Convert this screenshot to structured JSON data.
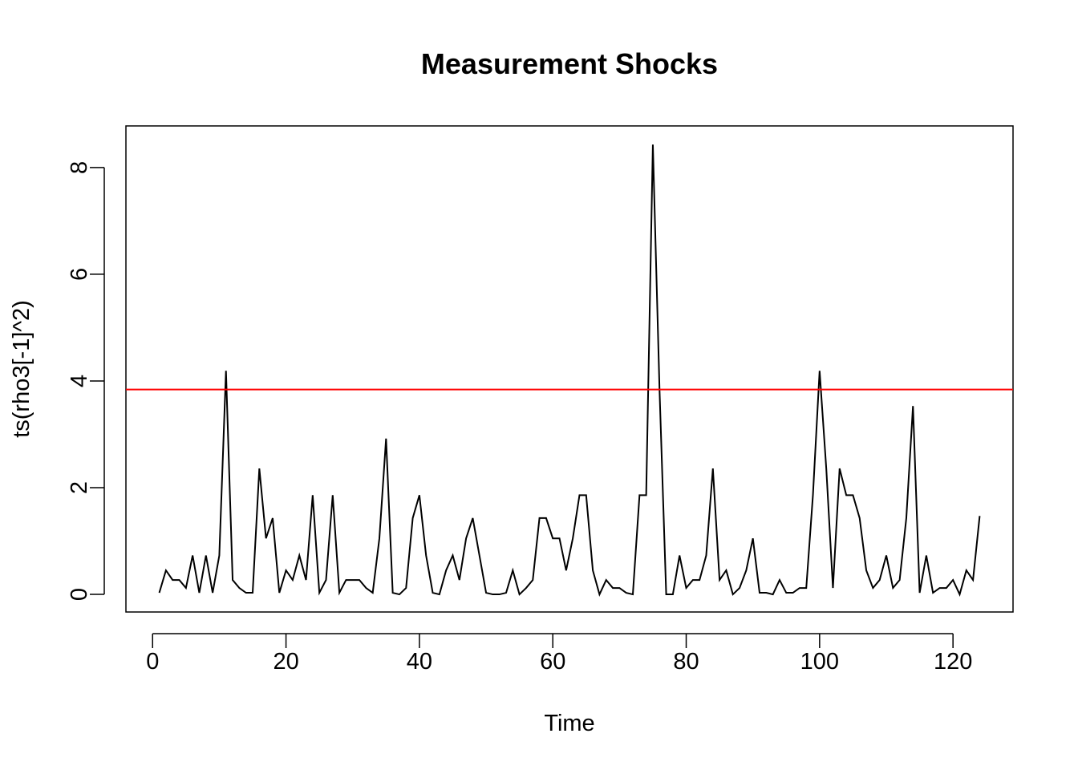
{
  "chart_data": {
    "type": "line",
    "title": "Measurement Shocks",
    "xlabel": "Time",
    "ylabel": "ts(rho3[-1]^2)",
    "xlim": [
      -4,
      129
    ],
    "ylim": [
      -0.33,
      8.78
    ],
    "x_ticks": [
      0,
      20,
      40,
      60,
      80,
      100,
      120
    ],
    "y_ticks": [
      0,
      2,
      4,
      6,
      8
    ],
    "grid": false,
    "legend": "none",
    "reference_line": {
      "y": 3.84,
      "color": "#ff0000"
    },
    "series": [
      {
        "color": "#000000",
        "x": [
          1,
          2,
          3,
          4,
          5,
          6,
          7,
          8,
          9,
          10,
          11,
          12,
          13,
          14,
          15,
          16,
          17,
          18,
          19,
          20,
          21,
          22,
          23,
          24,
          25,
          26,
          27,
          28,
          29,
          30,
          31,
          32,
          33,
          34,
          35,
          36,
          37,
          38,
          39,
          40,
          41,
          42,
          43,
          44,
          45,
          46,
          47,
          48,
          49,
          50,
          51,
          52,
          53,
          54,
          55,
          56,
          57,
          58,
          59,
          60,
          61,
          62,
          63,
          64,
          65,
          66,
          67,
          68,
          69,
          70,
          71,
          72,
          73,
          74,
          75,
          76,
          77,
          78,
          79,
          80,
          81,
          82,
          83,
          84,
          85,
          86,
          87,
          88,
          89,
          90,
          91,
          92,
          93,
          94,
          95,
          96,
          97,
          98,
          99,
          100,
          101,
          102,
          103,
          104,
          105,
          106,
          107,
          108,
          109,
          110,
          111,
          112,
          113,
          114,
          115,
          116,
          117,
          118,
          119,
          120,
          121,
          122,
          123,
          124
        ],
        "values": [
          0.03,
          0.45,
          0.27,
          0.27,
          0.12,
          0.73,
          0.03,
          0.73,
          0.03,
          0.73,
          4.19,
          0.27,
          0.12,
          0.03,
          0.03,
          2.36,
          1.05,
          1.43,
          0.03,
          0.45,
          0.27,
          0.73,
          0.27,
          1.86,
          0.03,
          0.27,
          1.86,
          0.03,
          0.27,
          0.27,
          0.27,
          0.12,
          0.03,
          1.05,
          2.92,
          0.03,
          0.0,
          0.12,
          1.43,
          1.86,
          0.73,
          0.03,
          0.0,
          0.45,
          0.73,
          0.27,
          1.05,
          1.43,
          0.73,
          0.03,
          0.0,
          0.0,
          0.03,
          0.45,
          0.0,
          0.12,
          0.27,
          1.43,
          1.43,
          1.05,
          1.05,
          0.45,
          1.05,
          1.86,
          1.86,
          0.45,
          0.0,
          0.27,
          0.12,
          0.12,
          0.03,
          0.0,
          1.86,
          1.86,
          8.43,
          3.84,
          0.0,
          0.0,
          0.73,
          0.12,
          0.27,
          0.27,
          0.73,
          2.36,
          0.27,
          0.45,
          0.0,
          0.12,
          0.45,
          1.05,
          0.03,
          0.03,
          0.0,
          0.27,
          0.03,
          0.03,
          0.12,
          0.12,
          1.86,
          4.19,
          2.36,
          0.12,
          2.36,
          1.86,
          1.86,
          1.43,
          0.45,
          0.12,
          0.27,
          0.73,
          0.12,
          0.27,
          1.43,
          3.53,
          0.03,
          0.73,
          0.03,
          0.12,
          0.12,
          0.27,
          0.0,
          0.45,
          0.27,
          1.47
        ]
      }
    ]
  }
}
